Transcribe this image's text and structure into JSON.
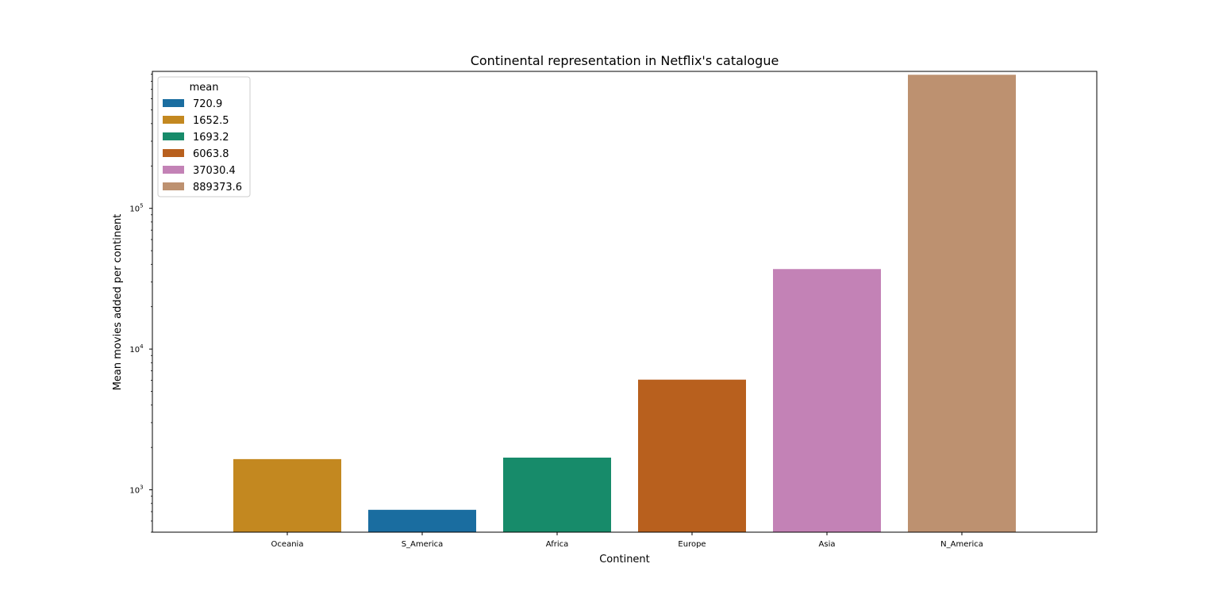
{
  "chart_data": {
    "type": "bar",
    "title": "Continental representation in Netflix's catalogue",
    "xlabel": "Continent",
    "ylabel": "Mean movies added per continent",
    "yscale": "log",
    "ylim": [
      500,
      940000
    ],
    "y_ticks": [
      {
        "value": 1000,
        "base": "10",
        "exp": "3"
      },
      {
        "value": 10000,
        "base": "10",
        "exp": "4"
      },
      {
        "value": 100000,
        "base": "10",
        "exp": "5"
      }
    ],
    "categories": [
      "Oceania",
      "S_America",
      "Africa",
      "Europe",
      "Asia",
      "N_America"
    ],
    "values": [
      1652.5,
      720.9,
      1693.2,
      6063.8,
      37030.4,
      889373.6
    ],
    "bar_colors": [
      "#c38820",
      "#1a6da0",
      "#178b6a",
      "#b8601e",
      "#c382b6",
      "#bd9170"
    ],
    "legend": {
      "title": "mean",
      "placement": "upper-left",
      "entries": [
        {
          "label": "720.9",
          "color": "#1a6da0"
        },
        {
          "label": "1652.5",
          "color": "#c38820"
        },
        {
          "label": "1693.2",
          "color": "#178b6a"
        },
        {
          "label": "6063.8",
          "color": "#b8601e"
        },
        {
          "label": "37030.4",
          "color": "#c382b6"
        },
        {
          "label": "889373.6",
          "color": "#bd9170"
        }
      ]
    },
    "grid": false
  }
}
